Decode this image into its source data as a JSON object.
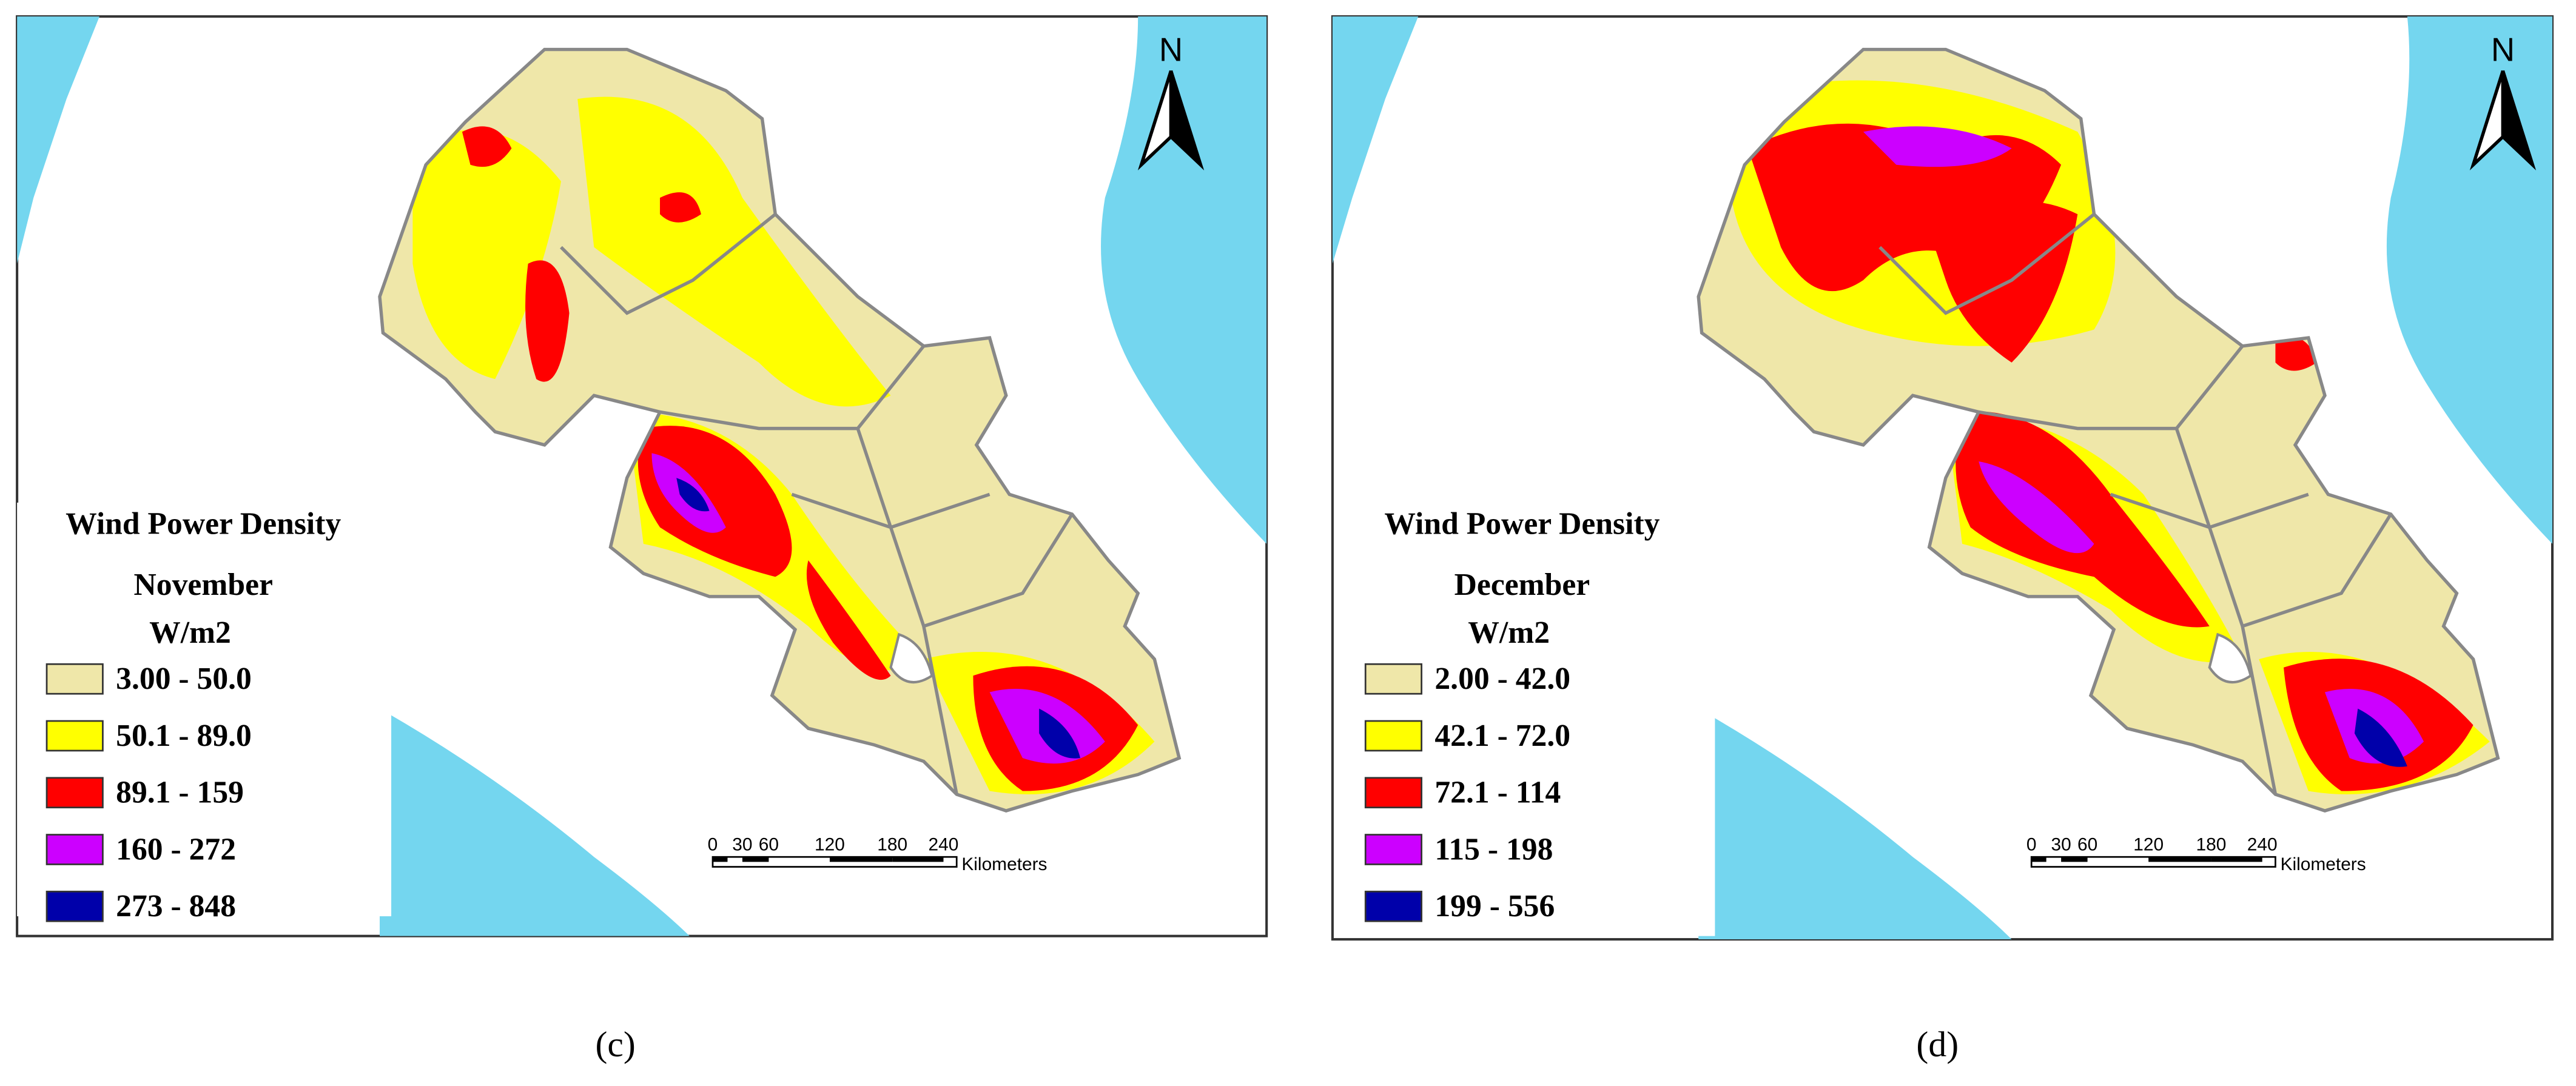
{
  "panels": [
    {
      "legend": {
        "title": "Wind Power Density",
        "month": "November",
        "unit": "W/m2",
        "classes": [
          {
            "label": "3.00 - 50.0",
            "color": "#efe7a9"
          },
          {
            "label": "50.1 - 89.0",
            "color": "#ffff00"
          },
          {
            "label": "89.1 - 159",
            "color": "#ff0000"
          },
          {
            "label": "160 - 272",
            "color": "#cc00ff"
          },
          {
            "label": "273 - 848",
            "color": "#0000aa"
          }
        ]
      },
      "north": "N",
      "scale": {
        "ticks": [
          "0",
          "30",
          "60",
          "120",
          "180",
          "240"
        ],
        "unit": "Kilometers"
      },
      "caption": "(c)"
    },
    {
      "legend": {
        "title": "Wind Power Density",
        "month": "December",
        "unit": "W/m2",
        "classes": [
          {
            "label": "2.00 - 42.0",
            "color": "#efe7a9"
          },
          {
            "label": "42.1 - 72.0",
            "color": "#ffff00"
          },
          {
            "label": "72.1 - 114",
            "color": "#ff0000"
          },
          {
            "label": "115 - 198",
            "color": "#cc00ff"
          },
          {
            "label": "199 - 556",
            "color": "#0000aa"
          }
        ]
      },
      "north": "N",
      "scale": {
        "ticks": [
          "0",
          "30",
          "60",
          "120",
          "180",
          "240"
        ],
        "unit": "Kilometers"
      },
      "caption": "(d)"
    }
  ]
}
